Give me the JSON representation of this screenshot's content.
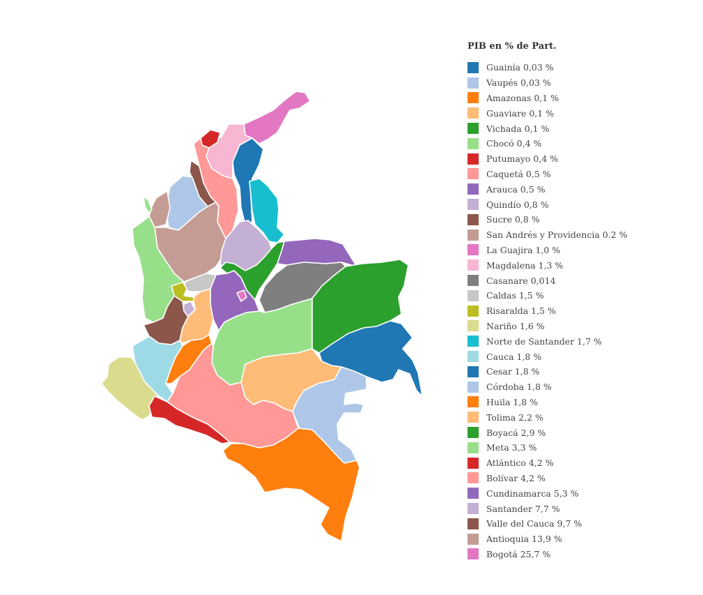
{
  "legend": {
    "title": "PIB en % de Part.",
    "items": [
      {
        "id": "guainia",
        "label": "Guainía 0,03 %",
        "color": "#1f77b4"
      },
      {
        "id": "vaupes",
        "label": "Vaupés 0,03 %",
        "color": "#aec7e8"
      },
      {
        "id": "amazonas",
        "label": "Amazonas 0,1 %",
        "color": "#ff7f0e"
      },
      {
        "id": "guaviare",
        "label": "Guaviare 0,1 %",
        "color": "#ffbb78"
      },
      {
        "id": "vichada",
        "label": "Vichada 0,1 %",
        "color": "#2ca02c"
      },
      {
        "id": "choco",
        "label": "Chocó 0,4 %",
        "color": "#98df8a"
      },
      {
        "id": "putumayo",
        "label": "Putumayo 0,4 %",
        "color": "#d62728"
      },
      {
        "id": "caqueta",
        "label": "Caquetá 0,5 %",
        "color": "#ff9896"
      },
      {
        "id": "arauca",
        "label": "Arauca 0,5 %",
        "color": "#9467bd"
      },
      {
        "id": "quindio",
        "label": "Quindío 0,8 %",
        "color": "#c5b0d5"
      },
      {
        "id": "sucre",
        "label": "Sucre 0,8 %",
        "color": "#8c564b"
      },
      {
        "id": "san-andres",
        "label": "San Andrés y Providencia 0.2 %",
        "color": "#c49c94"
      },
      {
        "id": "la-guajira",
        "label": "La Guajira 1,0 %",
        "color": "#e377c2"
      },
      {
        "id": "magdalena",
        "label": "Magdalena 1,3 %",
        "color": "#f7b6d2"
      },
      {
        "id": "casanare",
        "label": "Casanare 0,014",
        "color": "#7f7f7f"
      },
      {
        "id": "caldas",
        "label": "Caldas 1,5 %",
        "color": "#c7c7c7"
      },
      {
        "id": "risaralda",
        "label": "Risaralda 1,5 %",
        "color": "#bcbd22"
      },
      {
        "id": "narino",
        "label": "Nariño 1,6 %",
        "color": "#dbdb8d"
      },
      {
        "id": "norte-de-santander",
        "label": "Norte de Santander 1,7 %",
        "color": "#17becf"
      },
      {
        "id": "cauca",
        "label": "Cauca 1,8 %",
        "color": "#9edae5"
      },
      {
        "id": "cesar",
        "label": "Cesar 1,8 %",
        "color": "#1f77b4"
      },
      {
        "id": "cordoba",
        "label": "Córdoba 1,8 %",
        "color": "#aec7e8"
      },
      {
        "id": "huila",
        "label": "Huila 1,8 %",
        "color": "#ff7f0e"
      },
      {
        "id": "tolima",
        "label": "Tolima 2,2 %",
        "color": "#ffbb78"
      },
      {
        "id": "boyaca",
        "label": "Boyacá 2,9 %",
        "color": "#2ca02c"
      },
      {
        "id": "meta",
        "label": "Meta 3,3 %",
        "color": "#98df8a"
      },
      {
        "id": "atlantico",
        "label": "Atlántico 4,2 %",
        "color": "#d62728"
      },
      {
        "id": "bolivar",
        "label": "Bolívar 4,2 %",
        "color": "#ff9896"
      },
      {
        "id": "cundinamarca",
        "label": "Cundinamarca 5,3 %",
        "color": "#9467bd"
      },
      {
        "id": "santander",
        "label": "Santander 7,7 %",
        "color": "#c5b0d5"
      },
      {
        "id": "valle-del-cauca",
        "label": "Valle del Cauca 9,7 %",
        "color": "#8c564b"
      },
      {
        "id": "antioquia",
        "label": "Antioquia 13,9 %",
        "color": "#c49c94"
      },
      {
        "id": "bogota",
        "label": "Bogotá 25,7 %",
        "color": "#e377c2"
      }
    ]
  }
}
